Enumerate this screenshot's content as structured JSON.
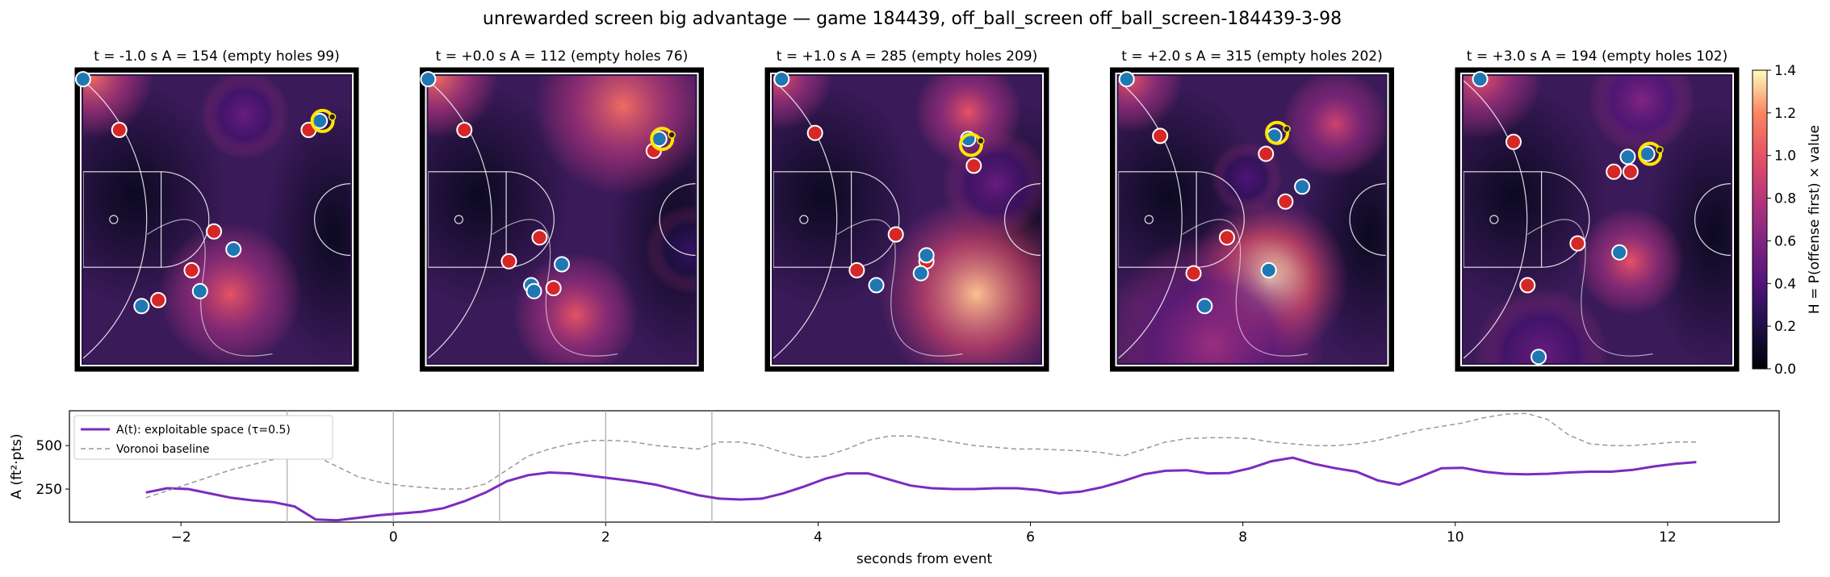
{
  "figure": {
    "suptitle": "unrewarded screen big advantage — game 184439, off_ball_screen off_ball_screen-184439-3-98"
  },
  "colors": {
    "offense": "#1f77b4",
    "defense": "#d62728",
    "ball_ring": "#ffe600",
    "line_A": "#7b2cbf",
    "line_voronoi": "#999999"
  },
  "chart_data": [
    {
      "type": "heatmap",
      "panels": [
        {
          "title": "t = -1.0 s   A = 154  (empty holes 99)",
          "t": -1.0,
          "A": 154,
          "empty_holes": 99,
          "offense": [
            [
              0.02,
              0.03
            ],
            [
              0.87,
              0.17
            ],
            [
              0.56,
              0.6
            ],
            [
              0.44,
              0.74
            ],
            [
              0.23,
              0.79
            ]
          ],
          "defense": [
            [
              0.15,
              0.2
            ],
            [
              0.83,
              0.2
            ],
            [
              0.49,
              0.54
            ],
            [
              0.41,
              0.67
            ],
            [
              0.29,
              0.77
            ]
          ],
          "ball": [
            0.88,
            0.17
          ],
          "hot": [
            [
              0.55,
              0.75,
              0.16,
              1.0
            ],
            [
              0.05,
              0.02,
              0.14,
              1.1
            ],
            [
              0.6,
              0.15,
              0.1,
              0.5
            ]
          ]
        },
        {
          "title": "t = +0.0 s   A = 112  (empty holes 76)",
          "t": 0.0,
          "A": 112,
          "empty_holes": 76,
          "offense": [
            [
              0.02,
              0.03
            ],
            [
              0.85,
              0.23
            ],
            [
              0.5,
              0.65
            ],
            [
              0.39,
              0.72
            ],
            [
              0.4,
              0.74
            ]
          ],
          "defense": [
            [
              0.15,
              0.2
            ],
            [
              0.83,
              0.27
            ],
            [
              0.42,
              0.56
            ],
            [
              0.31,
              0.64
            ],
            [
              0.47,
              0.73
            ]
          ],
          "ball": [
            0.86,
            0.23
          ],
          "hot": [
            [
              0.55,
              0.82,
              0.14,
              1.0
            ],
            [
              0.05,
              0.02,
              0.14,
              1.1
            ],
            [
              0.72,
              0.12,
              0.2,
              1.1
            ],
            [
              0.96,
              0.6,
              0.1,
              0.3
            ]
          ]
        },
        {
          "title": "t = +1.0 s   A = 285  (empty holes 209)",
          "t": 1.0,
          "A": 285,
          "empty_holes": 209,
          "offense": [
            [
              0.05,
              0.03
            ],
            [
              0.72,
              0.23
            ],
            [
              0.57,
              0.62
            ],
            [
              0.55,
              0.68
            ],
            [
              0.39,
              0.72
            ]
          ],
          "defense": [
            [
              0.17,
              0.21
            ],
            [
              0.74,
              0.32
            ],
            [
              0.46,
              0.55
            ],
            [
              0.57,
              0.64
            ],
            [
              0.32,
              0.67
            ]
          ],
          "ball": [
            0.73,
            0.25
          ],
          "hot": [
            [
              0.75,
              0.75,
              0.22,
              1.3
            ],
            [
              0.04,
              0.02,
              0.12,
              1.0
            ],
            [
              0.72,
              0.14,
              0.12,
              1.0
            ],
            [
              0.82,
              0.38,
              0.12,
              0.5
            ]
          ]
        },
        {
          "title": "t = +2.0 s   A = 315  (empty holes 202)",
          "t": 2.0,
          "A": 315,
          "empty_holes": 202,
          "offense": [
            [
              0.05,
              0.03
            ],
            [
              0.58,
              0.22
            ],
            [
              0.68,
              0.39
            ],
            [
              0.56,
              0.67
            ],
            [
              0.33,
              0.79
            ]
          ],
          "defense": [
            [
              0.17,
              0.22
            ],
            [
              0.55,
              0.28
            ],
            [
              0.62,
              0.44
            ],
            [
              0.41,
              0.56
            ],
            [
              0.29,
              0.68
            ]
          ],
          "ball": [
            0.59,
            0.21
          ],
          "hot": [
            [
              0.56,
              0.7,
              0.18,
              1.4
            ],
            [
              0.06,
              0.03,
              0.12,
              1.0
            ],
            [
              0.8,
              0.18,
              0.12,
              0.9
            ],
            [
              0.36,
              0.92,
              0.25,
              0.7
            ],
            [
              0.48,
              0.36,
              0.08,
              0.4
            ]
          ]
        },
        {
          "title": "t = +3.0 s   A = 194  (empty holes 102)",
          "t": 3.0,
          "A": 194,
          "empty_holes": 102,
          "offense": [
            [
              0.08,
              0.03
            ],
            [
              0.68,
              0.28
            ],
            [
              0.61,
              0.29
            ],
            [
              0.58,
              0.61
            ],
            [
              0.29,
              0.96
            ]
          ],
          "defense": [
            [
              0.2,
              0.24
            ],
            [
              0.56,
              0.34
            ],
            [
              0.62,
              0.34
            ],
            [
              0.43,
              0.58
            ],
            [
              0.25,
              0.72
            ]
          ],
          "ball": [
            0.69,
            0.28
          ],
          "hot": [
            [
              0.62,
              0.64,
              0.12,
              1.0
            ],
            [
              0.08,
              0.02,
              0.14,
              1.0
            ],
            [
              0.66,
              0.1,
              0.12,
              0.6
            ],
            [
              0.3,
              0.95,
              0.15,
              0.5
            ]
          ]
        }
      ]
    },
    {
      "type": "colorbar",
      "label": "H = P(offense first) × value",
      "ticks": [
        "0.0",
        "0.2",
        "0.4",
        "0.6",
        "0.8",
        "1.0",
        "1.2",
        "1.4"
      ],
      "range": [
        0,
        1.4
      ]
    },
    {
      "type": "line",
      "xlabel": "seconds from event",
      "ylabel": "A (ft²·pts)",
      "xlim": [
        -3.05,
        13.05
      ],
      "ylim": [
        60,
        700
      ],
      "xticks": [
        -2,
        0,
        2,
        4,
        6,
        8,
        10,
        12
      ],
      "xtick_labels": [
        "−2",
        "0",
        "2",
        "4",
        "6",
        "8",
        "10",
        "12"
      ],
      "yticks": [
        250,
        500
      ],
      "ytick_labels": [
        "250",
        "500"
      ],
      "event_lines": [
        -1,
        0,
        1,
        2,
        3
      ],
      "legend": "upper-left",
      "series": [
        {
          "name": "A(t): exploitable space (τ=0.5)",
          "style": "solid",
          "x": [
            -2.33,
            -2.13,
            -1.93,
            -1.73,
            -1.53,
            -1.33,
            -1.13,
            -0.93,
            -0.73,
            -0.53,
            -0.33,
            -0.13,
            0.07,
            0.27,
            0.47,
            0.67,
            0.87,
            1.07,
            1.27,
            1.47,
            1.67,
            1.87,
            2.07,
            2.27,
            2.47,
            2.67,
            2.87,
            3.07,
            3.27,
            3.47,
            3.67,
            3.87,
            4.07,
            4.27,
            4.47,
            4.67,
            4.87,
            5.07,
            5.27,
            5.47,
            5.67,
            5.87,
            6.07,
            6.27,
            6.47,
            6.67,
            6.87,
            7.07,
            7.27,
            7.47,
            7.67,
            7.87,
            8.07,
            8.27,
            8.47,
            8.67,
            8.87,
            9.07,
            9.27,
            9.47,
            9.67,
            9.87,
            10.07,
            10.27,
            10.47,
            10.67,
            10.87,
            11.07,
            11.27,
            11.47,
            11.67,
            11.87,
            12.07,
            12.27
          ],
          "y": [
            230,
            255,
            250,
            225,
            200,
            185,
            175,
            150,
            75,
            70,
            85,
            100,
            110,
            120,
            140,
            180,
            230,
            295,
            330,
            345,
            340,
            325,
            310,
            295,
            275,
            245,
            215,
            195,
            190,
            195,
            225,
            265,
            310,
            340,
            340,
            305,
            270,
            255,
            250,
            250,
            255,
            255,
            245,
            225,
            235,
            260,
            295,
            335,
            355,
            358,
            340,
            342,
            370,
            410,
            430,
            395,
            370,
            350,
            300,
            275,
            320,
            370,
            372,
            350,
            338,
            335,
            338,
            345,
            350,
            350,
            360,
            380,
            395,
            405
          ]
        },
        {
          "name": "Voronoi baseline",
          "style": "dashed",
          "x": [
            -2.33,
            -2.13,
            -1.93,
            -1.73,
            -1.53,
            -1.33,
            -1.13,
            -0.93,
            -0.73,
            -0.53,
            -0.33,
            -0.13,
            0.07,
            0.27,
            0.47,
            0.67,
            0.87,
            1.07,
            1.27,
            1.47,
            1.67,
            1.87,
            2.07,
            2.27,
            2.47,
            2.67,
            2.87,
            3.07,
            3.27,
            3.47,
            3.67,
            3.87,
            4.07,
            4.27,
            4.47,
            4.67,
            4.87,
            5.07,
            5.27,
            5.47,
            5.67,
            5.87,
            6.07,
            6.27,
            6.47,
            6.67,
            6.87,
            7.07,
            7.27,
            7.47,
            7.67,
            7.87,
            8.07,
            8.27,
            8.47,
            8.67,
            8.87,
            9.07,
            9.27,
            9.47,
            9.67,
            9.87,
            10.07,
            10.27,
            10.47,
            10.67,
            10.87,
            11.07,
            11.27,
            11.47,
            11.67,
            11.87,
            12.07,
            12.27
          ],
          "y": [
            200,
            240,
            280,
            320,
            360,
            390,
            420,
            430,
            440,
            380,
            320,
            290,
            270,
            260,
            250,
            250,
            280,
            360,
            440,
            480,
            510,
            530,
            530,
            520,
            500,
            490,
            480,
            520,
            520,
            500,
            460,
            430,
            440,
            480,
            530,
            555,
            555,
            540,
            520,
            500,
            490,
            480,
            480,
            475,
            470,
            460,
            440,
            480,
            520,
            540,
            545,
            545,
            540,
            520,
            510,
            500,
            500,
            510,
            530,
            560,
            590,
            610,
            630,
            660,
            680,
            685,
            650,
            560,
            510,
            500,
            500,
            510,
            520,
            520
          ]
        }
      ]
    }
  ]
}
